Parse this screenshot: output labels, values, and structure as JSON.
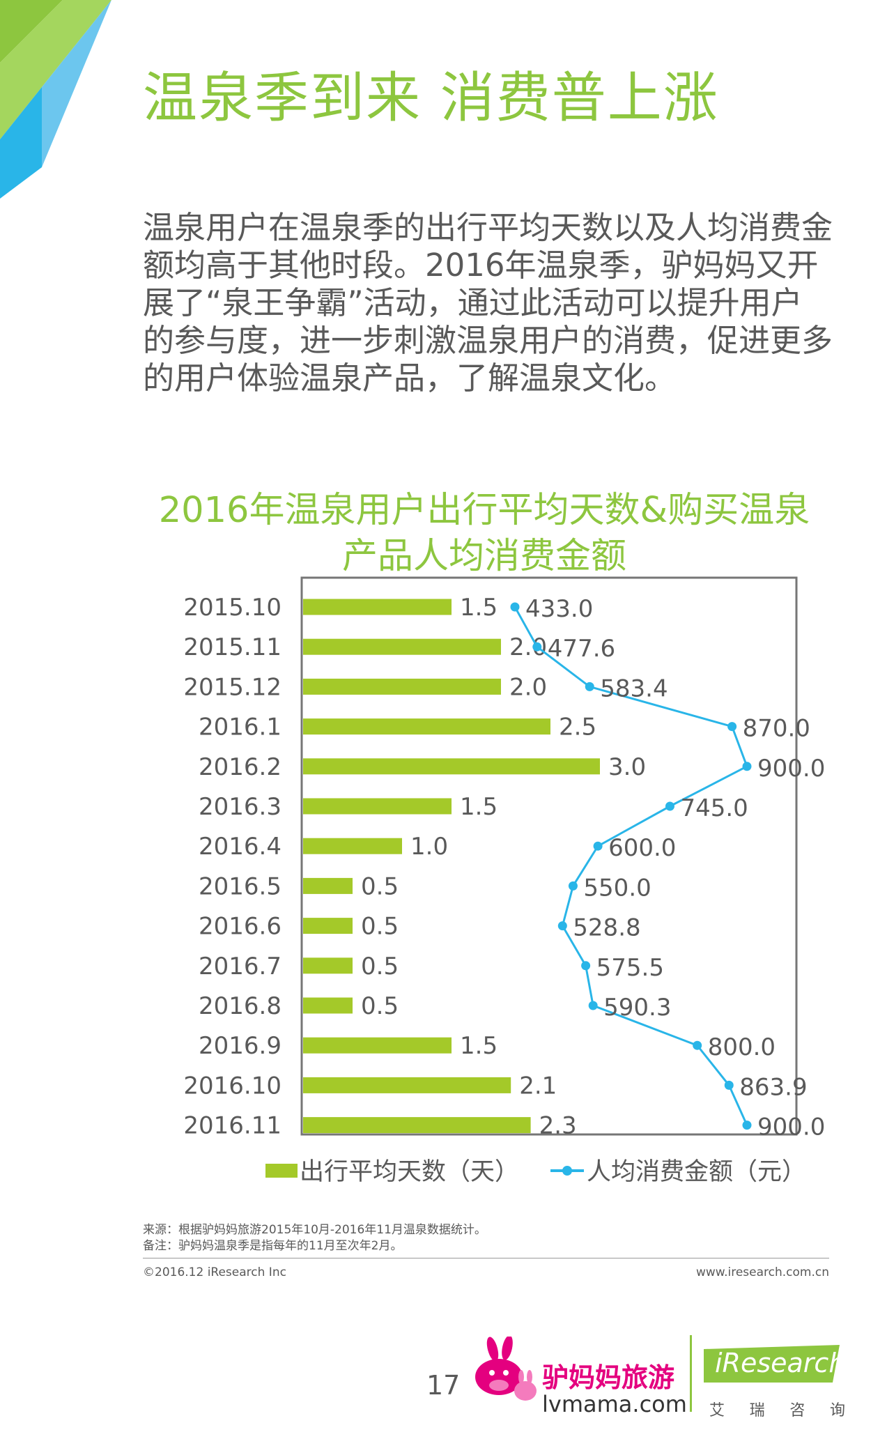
{
  "header": {
    "title": "温泉季到来   消费普上涨"
  },
  "intro": {
    "lines": [
      "温泉用户在温泉季的出行平均天数以及人均消费金",
      "额均高于其他时段。2016年温泉季，驴妈妈又开",
      "展了“泉王争霸”活动，通过此活动可以提升用户",
      "的参与度，进一步刺激温泉用户的消费，促进更多",
      "的用户体验温泉产品，了解温泉文化。"
    ]
  },
  "chart_data": {
    "type": "bar",
    "title_lines": [
      "2016年温泉用户出行平均天数&购买温泉",
      "产品人均消费金额"
    ],
    "categories": [
      "2015.10",
      "2015.11",
      "2015.12",
      "2016.1",
      "2016.2",
      "2016.3",
      "2016.4",
      "2016.5",
      "2016.6",
      "2016.7",
      "2016.8",
      "2016.9",
      "2016.10",
      "2016.11"
    ],
    "series": [
      {
        "name": "出行平均天数（天）",
        "type": "bar",
        "color": "#a4c929",
        "values": [
          1.5,
          2.0,
          2.0,
          2.5,
          3.0,
          1.5,
          1.0,
          0.5,
          0.5,
          0.5,
          0.5,
          1.5,
          2.1,
          2.3
        ],
        "labels": [
          "1.5",
          "2.0",
          "2.0",
          "2.5",
          "3.0",
          "1.5",
          "1.0",
          "0.5",
          "0.5",
          "0.5",
          "0.5",
          "1.5",
          "2.1",
          "2.3"
        ]
      },
      {
        "name": "人均消费金额（元）",
        "type": "line",
        "color": "#29b5e8",
        "values": [
          433.0,
          477.6,
          583.4,
          870.0,
          900.0,
          745.0,
          600.0,
          550.0,
          528.8,
          575.5,
          590.3,
          800.0,
          863.9,
          900.0
        ],
        "labels": [
          "433.0",
          "477.6",
          "583.4",
          "870.0",
          "900.0",
          "745.0",
          "600.0",
          "550.0",
          "528.8",
          "575.5",
          "590.3",
          "800.0",
          "863.9",
          "900.0"
        ]
      }
    ],
    "orientation": "horizontal",
    "bar_axis_range": [
      0,
      5
    ],
    "line_axis_range": [
      0,
      900
    ],
    "grid": false,
    "legend_position": "bottom",
    "value_labels": true
  },
  "footer": {
    "source": "来源：根据驴妈妈旅游2015年10月-2016年11月温泉数据统计。",
    "note": "备注：驴妈妈温泉季是指每年的11月至次年2月。",
    "copyright": "©2016.12  iResearch Inc",
    "website": "www.iresearch.com.cn",
    "page_number": "17"
  },
  "logos": {
    "lvmama_name": "驴妈妈旅游",
    "lvmama_url": "lvmama.com",
    "iresearch_name": "iResearch",
    "iresearch_chinese": [
      "艾",
      "瑞",
      "咨",
      "询"
    ],
    "lvmama_icon": "donkey-logo-icon",
    "colors": {
      "green": "#8dc63f",
      "pink": "#e4007f",
      "blue": "#29b5e8"
    }
  }
}
